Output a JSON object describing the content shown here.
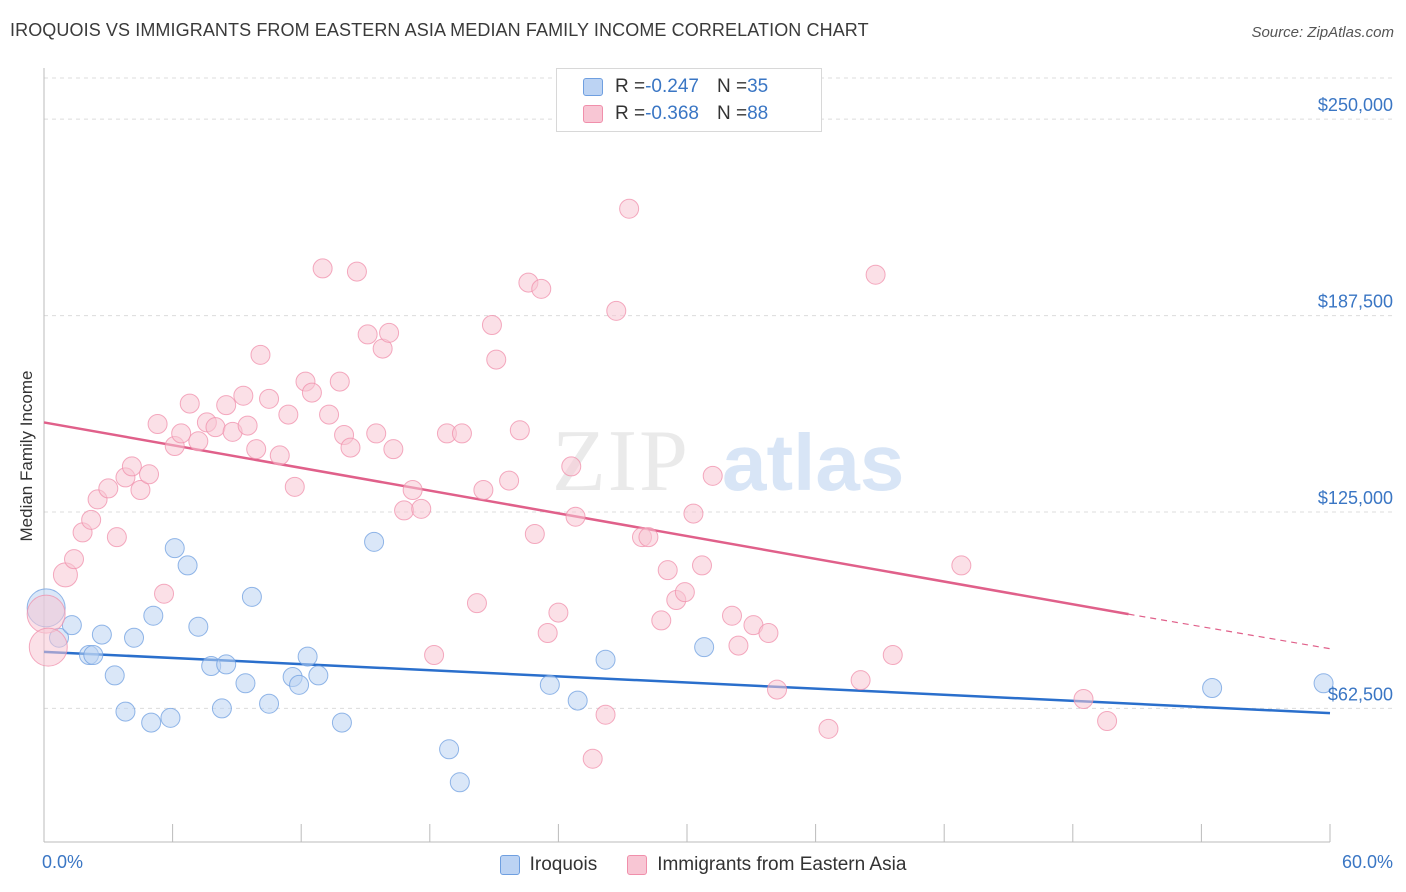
{
  "title": "IROQUOIS VS IMMIGRANTS FROM EASTERN ASIA MEDIAN FAMILY INCOME CORRELATION CHART",
  "source": "Source: ZipAtlas.com",
  "watermark": {
    "zip": "ZIP",
    "atlas": "atlas"
  },
  "legend": {
    "rows": [
      {
        "r_label": "R = ",
        "r_value": "-0.247",
        "n_label": "N = ",
        "n_value": "35",
        "color": "#6f9fe0"
      },
      {
        "r_label": "R = ",
        "r_value": "-0.368",
        "n_label": "N = ",
        "n_value": "88",
        "color": "#f08fab"
      }
    ]
  },
  "bottom_legend": {
    "iroquois": "Iroquois",
    "eastern_asia": "Immigrants from Eastern Asia"
  },
  "x_axis": {
    "min_label": "0.0%",
    "max_label": "60.0%"
  },
  "chart_data": {
    "type": "scatter",
    "title": "IROQUOIS VS IMMIGRANTS FROM EASTERN ASIA MEDIAN FAMILY INCOME CORRELATION CHART",
    "xlabel": "",
    "ylabel": "Median Family Income",
    "xlim": [
      0,
      60
    ],
    "ylim": [
      20000,
      265000
    ],
    "y_ticks": [
      {
        "value": 62500,
        "label": "$62,500"
      },
      {
        "value": 125000,
        "label": "$125,000"
      },
      {
        "value": 187500,
        "label": "$187,500"
      },
      {
        "value": 250000,
        "label": "$250,000"
      }
    ],
    "x_tick_labels": [
      "0.0%",
      "60.0%"
    ],
    "grid": true,
    "legend_position": "top-center",
    "series": [
      {
        "name": "Iroquois",
        "color": "#6f9fe0",
        "fill": "#bcd3f3",
        "R": -0.247,
        "N": 35,
        "trend": {
          "x": [
            0,
            60
          ],
          "y": [
            80500,
            61000
          ]
        },
        "points": [
          [
            0.1,
            94500
          ],
          [
            0.7,
            85000
          ],
          [
            1.3,
            89000
          ],
          [
            2.1,
            79500
          ],
          [
            2.3,
            79500
          ],
          [
            2.7,
            86000
          ],
          [
            3.3,
            73000
          ],
          [
            3.8,
            61500
          ],
          [
            4.2,
            85000
          ],
          [
            5.0,
            58000
          ],
          [
            5.1,
            92000
          ],
          [
            5.9,
            59500
          ],
          [
            6.1,
            113500
          ],
          [
            6.7,
            108000
          ],
          [
            7.2,
            88500
          ],
          [
            7.8,
            76000
          ],
          [
            8.3,
            62500
          ],
          [
            8.5,
            76500
          ],
          [
            9.4,
            70500
          ],
          [
            9.7,
            98000
          ],
          [
            10.5,
            64000
          ],
          [
            11.6,
            72500
          ],
          [
            11.9,
            70000
          ],
          [
            12.3,
            79000
          ],
          [
            12.8,
            73000
          ],
          [
            13.9,
            58000
          ],
          [
            15.4,
            115500
          ],
          [
            18.9,
            49500
          ],
          [
            19.4,
            39000
          ],
          [
            23.6,
            70000
          ],
          [
            24.9,
            65000
          ],
          [
            26.2,
            78000
          ],
          [
            30.8,
            82000
          ],
          [
            54.5,
            69000
          ],
          [
            59.7,
            70500
          ]
        ]
      },
      {
        "name": "Immigrants from Eastern Asia",
        "color": "#f08fab",
        "fill": "#f8c6d4",
        "R": -0.368,
        "N": 88,
        "trend": {
          "x": [
            0,
            50.6
          ],
          "y": [
            153500,
            92500
          ]
        },
        "trend_dashed": {
          "x": [
            50.6,
            60
          ],
          "y": [
            92500,
            81500
          ]
        },
        "points": [
          [
            0.1,
            92500
          ],
          [
            0.2,
            82000
          ],
          [
            1.0,
            105000
          ],
          [
            1.4,
            110000
          ],
          [
            1.8,
            118500
          ],
          [
            2.2,
            122500
          ],
          [
            2.5,
            129000
          ],
          [
            3.0,
            132500
          ],
          [
            3.4,
            117000
          ],
          [
            3.8,
            136000
          ],
          [
            4.1,
            139500
          ],
          [
            4.5,
            132000
          ],
          [
            4.9,
            137000
          ],
          [
            5.3,
            153000
          ],
          [
            5.6,
            99000
          ],
          [
            6.1,
            146000
          ],
          [
            6.4,
            150000
          ],
          [
            6.8,
            159500
          ],
          [
            7.2,
            147500
          ],
          [
            7.6,
            153500
          ],
          [
            8.0,
            152000
          ],
          [
            8.5,
            159000
          ],
          [
            8.8,
            150500
          ],
          [
            9.3,
            162000
          ],
          [
            9.5,
            152500
          ],
          [
            9.9,
            145000
          ],
          [
            10.1,
            175000
          ],
          [
            10.5,
            161000
          ],
          [
            11.0,
            143000
          ],
          [
            11.4,
            156000
          ],
          [
            11.7,
            133000
          ],
          [
            12.2,
            166500
          ],
          [
            12.5,
            163000
          ],
          [
            13.0,
            202500
          ],
          [
            13.3,
            156000
          ],
          [
            13.8,
            166500
          ],
          [
            14.0,
            149500
          ],
          [
            14.3,
            145500
          ],
          [
            14.6,
            201500
          ],
          [
            15.1,
            181500
          ],
          [
            15.5,
            150000
          ],
          [
            15.8,
            177000
          ],
          [
            16.1,
            182000
          ],
          [
            16.3,
            145000
          ],
          [
            16.8,
            125500
          ],
          [
            17.2,
            132000
          ],
          [
            17.6,
            126000
          ],
          [
            18.2,
            79500
          ],
          [
            18.8,
            150000
          ],
          [
            19.5,
            150000
          ],
          [
            20.2,
            96000
          ],
          [
            20.5,
            132000
          ],
          [
            20.9,
            184500
          ],
          [
            21.1,
            173500
          ],
          [
            21.7,
            135000
          ],
          [
            22.2,
            151000
          ],
          [
            22.6,
            198000
          ],
          [
            22.9,
            118000
          ],
          [
            23.2,
            196000
          ],
          [
            23.5,
            86500
          ],
          [
            24.0,
            93000
          ],
          [
            24.6,
            139500
          ],
          [
            24.8,
            123500
          ],
          [
            25.6,
            46500
          ],
          [
            26.2,
            60500
          ],
          [
            26.7,
            189000
          ],
          [
            27.3,
            221500
          ],
          [
            27.9,
            117000
          ],
          [
            28.2,
            117000
          ],
          [
            28.8,
            90500
          ],
          [
            29.1,
            106500
          ],
          [
            29.5,
            97000
          ],
          [
            29.9,
            99500
          ],
          [
            30.3,
            124500
          ],
          [
            30.7,
            108000
          ],
          [
            31.2,
            136500
          ],
          [
            32.1,
            92000
          ],
          [
            32.4,
            82500
          ],
          [
            33.1,
            89000
          ],
          [
            33.8,
            86500
          ],
          [
            34.2,
            68500
          ],
          [
            36.6,
            56000
          ],
          [
            38.1,
            71500
          ],
          [
            38.8,
            200500
          ],
          [
            39.6,
            79500
          ],
          [
            42.8,
            108000
          ],
          [
            48.5,
            65500
          ],
          [
            49.6,
            58500
          ]
        ]
      }
    ]
  }
}
